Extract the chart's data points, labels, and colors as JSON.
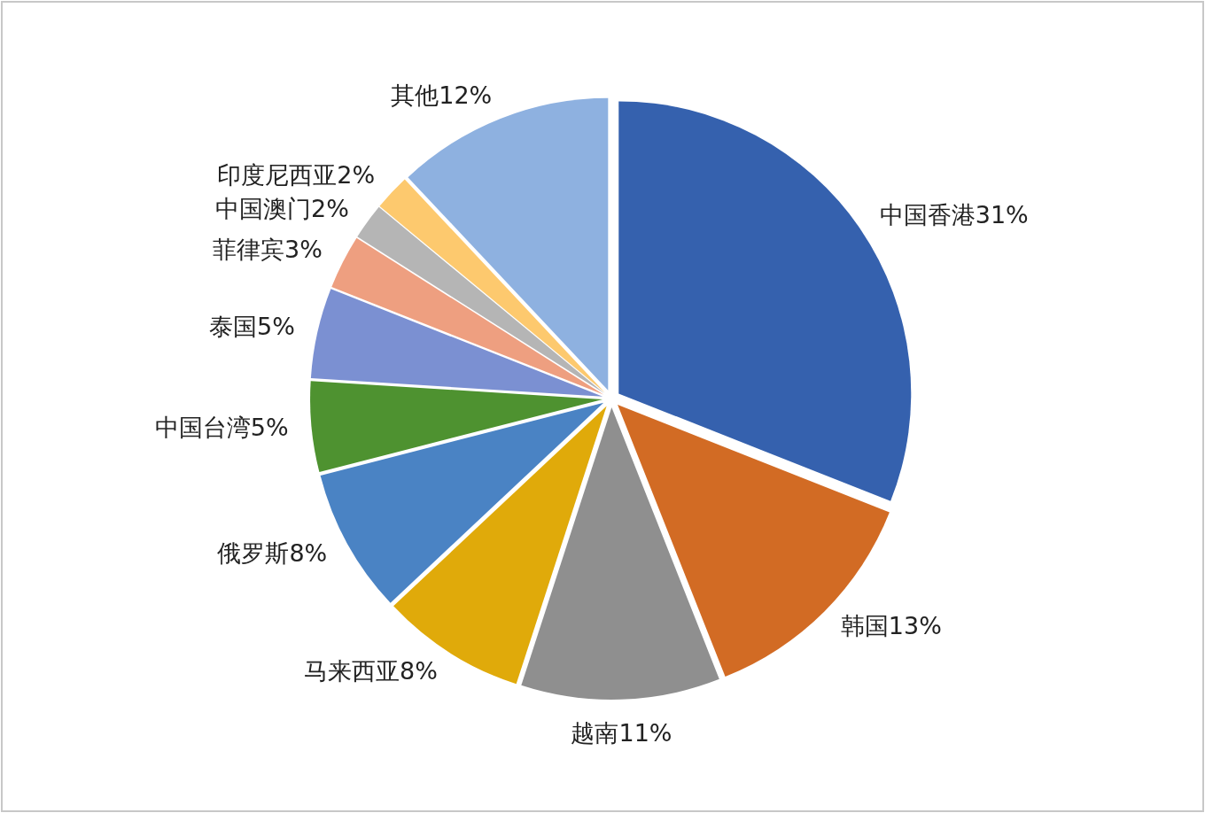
{
  "chart_data": {
    "type": "pie",
    "categories": [
      "中国香港",
      "韩国",
      "越南",
      "马来西亚",
      "俄罗斯",
      "中国台湾",
      "泰国",
      "菲律宾",
      "中国澳门",
      "印度尼西亚",
      "其他"
    ],
    "values": [
      31,
      13,
      11,
      8,
      8,
      5,
      5,
      3,
      2,
      2,
      12
    ],
    "value_labels": [
      "31%",
      "13%",
      "11%",
      "8%",
      "8%",
      "5%",
      "5%",
      "3%",
      "2%",
      "2%",
      "12%"
    ],
    "colors": [
      "#3561ae",
      "#d26b24",
      "#8f8f8f",
      "#e0aa0a",
      "#4a83c4",
      "#4e9230",
      "#7b90d2",
      "#ee9f80",
      "#b5b5b5",
      "#fdc96e",
      "#8eb1e0"
    ]
  }
}
